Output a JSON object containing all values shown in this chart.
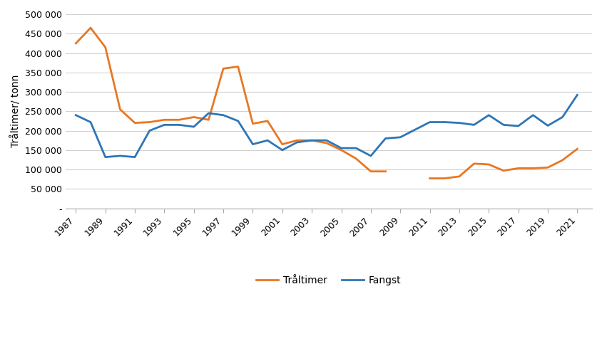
{
  "years": [
    1987,
    1988,
    1989,
    1990,
    1991,
    1992,
    1993,
    1994,
    1995,
    1996,
    1997,
    1998,
    1999,
    2000,
    2001,
    2002,
    2003,
    2004,
    2005,
    2006,
    2007,
    2008,
    2009,
    2011,
    2012,
    2013,
    2014,
    2015,
    2016,
    2017,
    2018,
    2019,
    2020,
    2021
  ],
  "traaltimer": [
    425000,
    465000,
    415000,
    255000,
    220000,
    222000,
    228000,
    228000,
    235000,
    228000,
    360000,
    365000,
    218000,
    225000,
    165000,
    175000,
    175000,
    168000,
    150000,
    128000,
    95000,
    95000,
    null,
    77000,
    77000,
    82000,
    115000,
    113000,
    97000,
    103000,
    103000,
    105000,
    124000,
    153000
  ],
  "fangst": [
    240000,
    222000,
    132000,
    135000,
    132000,
    200000,
    215000,
    215000,
    210000,
    245000,
    240000,
    225000,
    165000,
    175000,
    150000,
    170000,
    175000,
    175000,
    155000,
    155000,
    135000,
    180000,
    183000,
    222000,
    222000,
    220000,
    215000,
    240000,
    215000,
    212000,
    240000,
    213000,
    235000,
    292000
  ],
  "traaltimer_color": "#E87722",
  "fangst_color": "#2E75B6",
  "ylabel": "Tråltimer/ tonn",
  "ylim": [
    0,
    500000
  ],
  "yticks": [
    0,
    50000,
    100000,
    150000,
    200000,
    250000,
    300000,
    350000,
    400000,
    450000,
    500000
  ],
  "xticks": [
    1987,
    1989,
    1991,
    1993,
    1995,
    1997,
    1999,
    2001,
    2003,
    2005,
    2007,
    2009,
    2011,
    2013,
    2015,
    2017,
    2019,
    2021
  ],
  "legend_traaltimer": "Tråltimer",
  "legend_fangst": "Fangst",
  "background_color": "#ffffff",
  "grid_color": "#d0d0d0",
  "linewidth": 2.0
}
